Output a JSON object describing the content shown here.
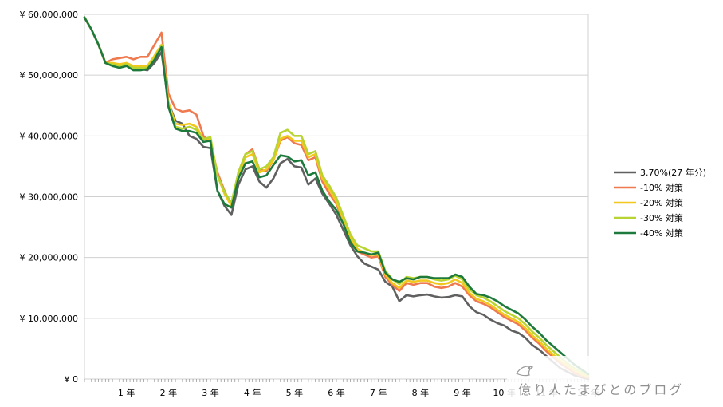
{
  "chart_data": {
    "type": "line",
    "title": "",
    "xlabel": "",
    "ylabel": "",
    "ylim": [
      0,
      60000000
    ],
    "y_ticks": [
      0,
      10000000,
      20000000,
      30000000,
      40000000,
      50000000,
      60000000
    ],
    "y_tick_labels": [
      "¥ 0",
      "¥ 10,000,000",
      "¥ 20,000,000",
      "¥ 30,000,000",
      "¥ 40,000,000",
      "¥ 50,000,000",
      "¥ 60,000,000"
    ],
    "x_tick_labels": [
      "1 年",
      "2 年",
      "3 年",
      "4 年",
      "5 年",
      "6 年",
      "7 年",
      "8 年",
      "9 年",
      "10 年",
      "11 年",
      "12 年"
    ],
    "grid": true,
    "legend_position": "right",
    "x": [
      0,
      2,
      4,
      6,
      8,
      10,
      12,
      14,
      16,
      18,
      20,
      22,
      24,
      26,
      28,
      30,
      32,
      34,
      36,
      38,
      40,
      42,
      44,
      46,
      48,
      50,
      52,
      54,
      56,
      58,
      60,
      62,
      64,
      66,
      68,
      70,
      72,
      74,
      76,
      78,
      80,
      82,
      84,
      86,
      88,
      90,
      92,
      94,
      96,
      98,
      100,
      102,
      104,
      106,
      108,
      110,
      112,
      114,
      116,
      118,
      120,
      122,
      124,
      126,
      128,
      130,
      132,
      134,
      136,
      138,
      140,
      142,
      144
    ],
    "series": [
      {
        "name": "3.70%(27 年分)",
        "color": "#606060",
        "values": [
          59.5,
          57.5,
          55.0,
          52.0,
          51.8,
          51.5,
          51.8,
          51.2,
          51.0,
          50.8,
          52.0,
          53.8,
          45.5,
          42.5,
          42.0,
          40.0,
          39.5,
          38.2,
          38.0,
          31.0,
          28.5,
          27.0,
          32.0,
          34.5,
          35.0,
          32.5,
          31.5,
          33.0,
          35.5,
          36.2,
          35.0,
          34.8,
          32.0,
          33.0,
          30.5,
          28.8,
          27.0,
          24.5,
          22.0,
          20.2,
          19.0,
          18.5,
          18.0,
          16.0,
          15.2,
          12.8,
          13.8,
          13.6,
          13.8,
          13.9,
          13.6,
          13.4,
          13.5,
          13.8,
          13.6,
          12.0,
          11.0,
          10.6,
          9.8,
          9.2,
          8.8,
          8.0,
          7.6,
          6.8,
          5.6,
          4.8,
          3.8,
          2.8,
          1.8,
          1.2,
          0.6,
          0.3,
          0.0
        ]
      },
      {
        "name": "-10% 対策",
        "color": "#f07a50",
        "values": [
          59.5,
          57.5,
          55.0,
          52.0,
          52.6,
          52.8,
          53.0,
          52.6,
          53.0,
          53.0,
          55.0,
          57.0,
          47.0,
          44.5,
          44.0,
          44.2,
          43.5,
          40.0,
          39.0,
          34.0,
          31.0,
          28.5,
          34.0,
          37.0,
          37.8,
          34.5,
          34.2,
          36.0,
          39.2,
          39.8,
          38.8,
          38.5,
          36.0,
          36.5,
          32.5,
          30.5,
          28.8,
          25.8,
          22.8,
          21.0,
          20.5,
          20.0,
          20.2,
          16.8,
          15.5,
          14.5,
          15.8,
          15.5,
          15.8,
          15.8,
          15.2,
          15.0,
          15.2,
          15.8,
          15.2,
          13.8,
          12.8,
          12.4,
          11.8,
          11.0,
          10.2,
          9.6,
          9.0,
          8.0,
          6.8,
          5.8,
          4.6,
          3.6,
          2.6,
          1.8,
          1.0,
          0.5,
          0.2
        ]
      },
      {
        "name": "-20% 対策",
        "color": "#f2c81e",
        "values": [
          59.5,
          57.5,
          55.0,
          52.0,
          52.0,
          51.8,
          52.0,
          51.5,
          51.5,
          51.5,
          53.2,
          55.0,
          45.5,
          42.0,
          41.8,
          42.0,
          41.5,
          39.5,
          39.5,
          33.5,
          30.5,
          28.5,
          33.5,
          36.5,
          37.0,
          34.0,
          34.5,
          36.0,
          39.5,
          40.0,
          39.2,
          39.2,
          36.5,
          37.0,
          33.0,
          31.2,
          29.2,
          26.2,
          23.2,
          21.4,
          20.8,
          20.4,
          20.5,
          17.2,
          15.8,
          15.0,
          16.2,
          16.0,
          16.2,
          16.2,
          15.8,
          15.6,
          15.8,
          16.4,
          15.8,
          14.2,
          13.2,
          12.8,
          12.2,
          11.4,
          10.6,
          10.0,
          9.4,
          8.4,
          7.2,
          6.2,
          5.0,
          4.0,
          3.0,
          2.2,
          1.4,
          0.8,
          0.4
        ]
      },
      {
        "name": "-30% 対策",
        "color": "#b8d430",
        "values": [
          59.5,
          57.5,
          55.0,
          52.0,
          51.8,
          51.5,
          51.8,
          51.2,
          51.2,
          51.2,
          52.8,
          54.8,
          45.0,
          41.5,
          41.2,
          41.5,
          41.0,
          39.5,
          39.8,
          33.5,
          30.8,
          29.0,
          34.0,
          37.0,
          37.5,
          34.5,
          35.0,
          36.5,
          40.5,
          41.0,
          40.0,
          40.0,
          37.0,
          37.5,
          33.5,
          31.8,
          29.8,
          26.8,
          23.8,
          22.0,
          21.5,
          21.0,
          21.0,
          17.8,
          16.4,
          15.6,
          16.8,
          16.6,
          16.8,
          16.8,
          16.4,
          16.2,
          16.4,
          17.0,
          16.4,
          14.8,
          13.8,
          13.4,
          12.8,
          12.0,
          11.2,
          10.6,
          10.0,
          9.0,
          7.8,
          6.8,
          5.6,
          4.6,
          3.6,
          2.6,
          1.8,
          1.2,
          0.6
        ]
      },
      {
        "name": "-40% 対策",
        "color": "#1e7a3c",
        "values": [
          59.5,
          57.5,
          55.0,
          52.0,
          51.5,
          51.2,
          51.5,
          50.8,
          50.8,
          51.0,
          52.5,
          54.6,
          44.8,
          41.2,
          40.8,
          40.8,
          40.5,
          39.0,
          39.2,
          31.0,
          28.8,
          28.2,
          33.0,
          35.5,
          35.8,
          33.2,
          33.5,
          35.2,
          36.8,
          36.6,
          35.8,
          36.0,
          33.5,
          34.0,
          31.0,
          29.2,
          27.8,
          25.5,
          22.5,
          21.0,
          20.8,
          20.5,
          20.8,
          17.5,
          16.4,
          16.0,
          16.6,
          16.4,
          16.8,
          16.8,
          16.6,
          16.6,
          16.6,
          17.2,
          16.8,
          15.2,
          14.0,
          13.8,
          13.4,
          12.8,
          12.0,
          11.4,
          10.8,
          9.8,
          8.6,
          7.6,
          6.4,
          5.4,
          4.4,
          3.4,
          2.4,
          1.6,
          0.8
        ]
      }
    ]
  },
  "watermark": {
    "text": "億り人たまびとのブログ"
  }
}
